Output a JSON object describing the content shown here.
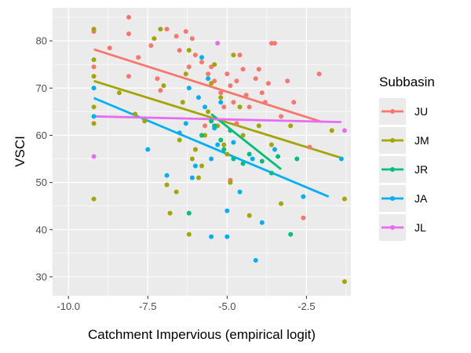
{
  "chart_data": {
    "type": "scatter",
    "xlabel": "Catchment Impervious (empirical logit)",
    "ylabel": "VSCI",
    "xlim": [
      -10.5,
      -1.1
    ],
    "ylim": [
      26,
      87
    ],
    "x_ticks": [
      -10.0,
      -7.5,
      -5.0,
      -2.5
    ],
    "x_tick_labels": [
      "-10.0",
      "-7.5",
      "-5.0",
      "-2.5"
    ],
    "y_ticks": [
      30,
      40,
      50,
      60,
      70,
      80
    ],
    "y_tick_labels": [
      "30",
      "40",
      "50",
      "60",
      "70",
      "80"
    ],
    "grid": true,
    "legend": {
      "title": "Subbasin",
      "position": "right",
      "entries": [
        "JU",
        "JM",
        "JR",
        "JA",
        "JL"
      ]
    },
    "series": [
      {
        "name": "JU",
        "color": "#F8766D",
        "trend": [
          [
            -9.2,
            78.2
          ],
          [
            -2.0,
            62.8
          ]
        ],
        "points": [
          [
            -9.2,
            82.0
          ],
          [
            -9.2,
            74.5
          ],
          [
            -8.7,
            78.5
          ],
          [
            -8.1,
            85.0
          ],
          [
            -8.1,
            81.5
          ],
          [
            -8.1,
            72.5
          ],
          [
            -7.8,
            76.5
          ],
          [
            -7.4,
            79.0
          ],
          [
            -7.2,
            72.0
          ],
          [
            -7.1,
            69.5
          ],
          [
            -6.9,
            82.5
          ],
          [
            -6.6,
            81.0
          ],
          [
            -6.5,
            78.0
          ],
          [
            -6.3,
            82.0
          ],
          [
            -6.2,
            74.5
          ],
          [
            -6.1,
            80.5
          ],
          [
            -6.0,
            77.0
          ],
          [
            -5.8,
            75.5
          ],
          [
            -5.6,
            73.0
          ],
          [
            -5.5,
            74.5
          ],
          [
            -5.4,
            71.5
          ],
          [
            -5.2,
            69.0
          ],
          [
            -5.1,
            66.0
          ],
          [
            -5.0,
            73.0
          ],
          [
            -4.9,
            70.5
          ],
          [
            -4.8,
            67.0
          ],
          [
            -4.7,
            71.5
          ],
          [
            -4.6,
            77.0
          ],
          [
            -4.5,
            74.0
          ],
          [
            -4.4,
            68.5
          ],
          [
            -4.3,
            66.0
          ],
          [
            -4.1,
            72.0
          ],
          [
            -4.0,
            74.0
          ],
          [
            -3.9,
            69.0
          ],
          [
            -3.8,
            67.0
          ],
          [
            -3.7,
            71.0
          ],
          [
            -3.6,
            79.5
          ],
          [
            -3.5,
            79.5
          ],
          [
            -3.3,
            64.0
          ],
          [
            -3.1,
            71.5
          ],
          [
            -2.9,
            67.0
          ],
          [
            -2.6,
            42.5
          ],
          [
            -2.4,
            57.5
          ],
          [
            -2.1,
            73.0
          ],
          [
            -6.0,
            57.0
          ],
          [
            -5.7,
            62.0
          ],
          [
            -4.9,
            50.5
          ],
          [
            -4.7,
            62.5
          ]
        ]
      },
      {
        "name": "JM",
        "color": "#A3A500",
        "trend": [
          [
            -9.2,
            71.5
          ],
          [
            -1.4,
            55.2
          ]
        ],
        "points": [
          [
            -9.2,
            82.5
          ],
          [
            -9.2,
            76.0
          ],
          [
            -9.2,
            72.5
          ],
          [
            -9.2,
            66.0
          ],
          [
            -9.2,
            62.5
          ],
          [
            -9.2,
            46.5
          ],
          [
            -8.4,
            69.0
          ],
          [
            -7.9,
            64.5
          ],
          [
            -7.6,
            63.0
          ],
          [
            -7.3,
            80.5
          ],
          [
            -7.1,
            82.5
          ],
          [
            -7.0,
            70.5
          ],
          [
            -6.9,
            49.5
          ],
          [
            -6.8,
            43.5
          ],
          [
            -6.6,
            48.0
          ],
          [
            -6.5,
            59.0
          ],
          [
            -6.4,
            67.0
          ],
          [
            -6.3,
            73.0
          ],
          [
            -6.2,
            78.0
          ],
          [
            -6.2,
            39.0
          ],
          [
            -6.1,
            55.0
          ],
          [
            -6.0,
            57.0
          ],
          [
            -5.9,
            51.0
          ],
          [
            -5.8,
            53.5
          ],
          [
            -5.7,
            60.0
          ],
          [
            -5.6,
            65.0
          ],
          [
            -5.5,
            71.0
          ],
          [
            -5.4,
            75.0
          ],
          [
            -5.3,
            62.0
          ],
          [
            -5.2,
            68.0
          ],
          [
            -5.1,
            58.0
          ],
          [
            -5.0,
            56.0
          ],
          [
            -4.9,
            50.0
          ],
          [
            -4.8,
            77.0
          ],
          [
            -4.6,
            66.0
          ],
          [
            -4.5,
            60.0
          ],
          [
            -4.3,
            43.0
          ],
          [
            -4.0,
            62.0
          ],
          [
            -3.6,
            58.0
          ],
          [
            -3.3,
            45.5
          ],
          [
            -3.0,
            62.0
          ],
          [
            -1.7,
            61.0
          ],
          [
            -1.3,
            46.5
          ],
          [
            -1.3,
            29.0
          ]
        ]
      },
      {
        "name": "JR",
        "color": "#00BF7D",
        "trend": [
          [
            -5.5,
            64.5
          ],
          [
            -3.3,
            52.8
          ]
        ],
        "points": [
          [
            -6.2,
            43.5
          ],
          [
            -5.8,
            60.0
          ],
          [
            -5.5,
            63.0
          ],
          [
            -5.4,
            62.0
          ],
          [
            -5.2,
            59.0
          ],
          [
            -5.1,
            57.0
          ],
          [
            -4.9,
            61.0
          ],
          [
            -4.8,
            55.0
          ],
          [
            -4.5,
            54.0
          ],
          [
            -4.3,
            56.0
          ],
          [
            -3.9,
            54.5
          ],
          [
            -3.6,
            52.0
          ],
          [
            -3.4,
            55.5
          ],
          [
            -3.0,
            39.0
          ],
          [
            -2.8,
            55.0
          ]
        ]
      },
      {
        "name": "JA",
        "color": "#00B0F6",
        "trend": [
          [
            -9.2,
            67.9
          ],
          [
            -1.8,
            47.0
          ]
        ],
        "points": [
          [
            -9.2,
            70.0
          ],
          [
            -9.2,
            64.0
          ],
          [
            -7.5,
            57.0
          ],
          [
            -6.9,
            51.5
          ],
          [
            -6.5,
            60.5
          ],
          [
            -6.3,
            62.5
          ],
          [
            -6.2,
            70.0
          ],
          [
            -6.1,
            51.0
          ],
          [
            -6.0,
            53.5
          ],
          [
            -5.9,
            68.0
          ],
          [
            -5.8,
            76.5
          ],
          [
            -5.7,
            66.0
          ],
          [
            -5.6,
            72.0
          ],
          [
            -5.5,
            55.0
          ],
          [
            -5.5,
            38.5
          ],
          [
            -5.4,
            61.5
          ],
          [
            -5.3,
            58.0
          ],
          [
            -5.2,
            67.0
          ],
          [
            -5.0,
            38.5
          ],
          [
            -5.0,
            44.0
          ],
          [
            -4.8,
            58.5
          ],
          [
            -4.6,
            48.0
          ],
          [
            -4.2,
            55.0
          ],
          [
            -4.1,
            33.5
          ],
          [
            -3.9,
            41.5
          ],
          [
            -3.5,
            57.0
          ],
          [
            -2.6,
            47.0
          ],
          [
            -1.4,
            55.0
          ]
        ]
      },
      {
        "name": "JL",
        "color": "#E76BF3",
        "trend": [
          [
            -9.2,
            64.0
          ],
          [
            -1.4,
            62.8
          ]
        ],
        "points": [
          [
            -9.2,
            55.5
          ],
          [
            -5.3,
            79.5
          ],
          [
            -1.3,
            61.0
          ]
        ]
      }
    ]
  }
}
